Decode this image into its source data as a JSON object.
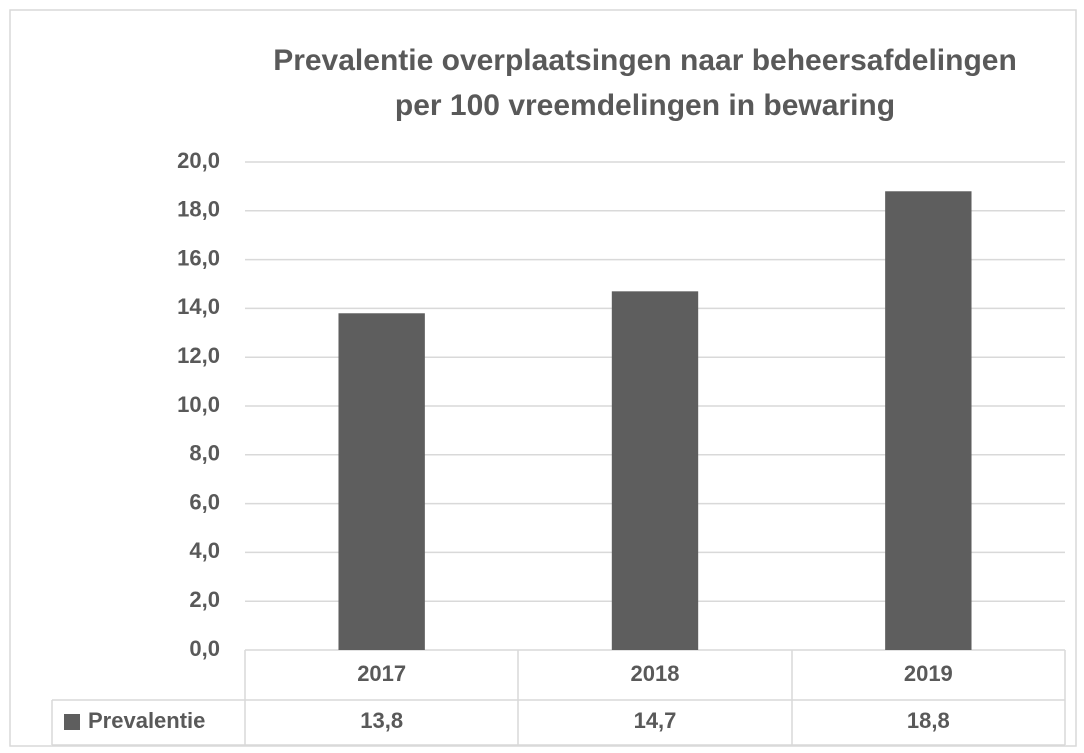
{
  "chart_data": {
    "type": "bar",
    "title": [
      "Prevalentie overplaatsingen naar beheersafdelingen",
      "per 100 vreemdelingen in bewaring"
    ],
    "categories": [
      "2017",
      "2018",
      "2019"
    ],
    "series": [
      {
        "name": "Prevalentie",
        "color": "#5e5e5e",
        "values": [
          13.8,
          14.7,
          18.8
        ],
        "value_labels": [
          "13,8",
          "14,7",
          "18,8"
        ]
      }
    ],
    "ylim": [
      0,
      20
    ],
    "yticks": [
      {
        "value": 0,
        "label": "0,0"
      },
      {
        "value": 2,
        "label": "2,0"
      },
      {
        "value": 4,
        "label": "4,0"
      },
      {
        "value": 6,
        "label": "6,0"
      },
      {
        "value": 8,
        "label": "8,0"
      },
      {
        "value": 10,
        "label": "10,0"
      },
      {
        "value": 12,
        "label": "12,0"
      },
      {
        "value": 14,
        "label": "14,0"
      },
      {
        "value": 16,
        "label": "16,0"
      },
      {
        "value": 18,
        "label": "18,0"
      },
      {
        "value": 20,
        "label": "20,0"
      }
    ],
    "grid": true
  }
}
